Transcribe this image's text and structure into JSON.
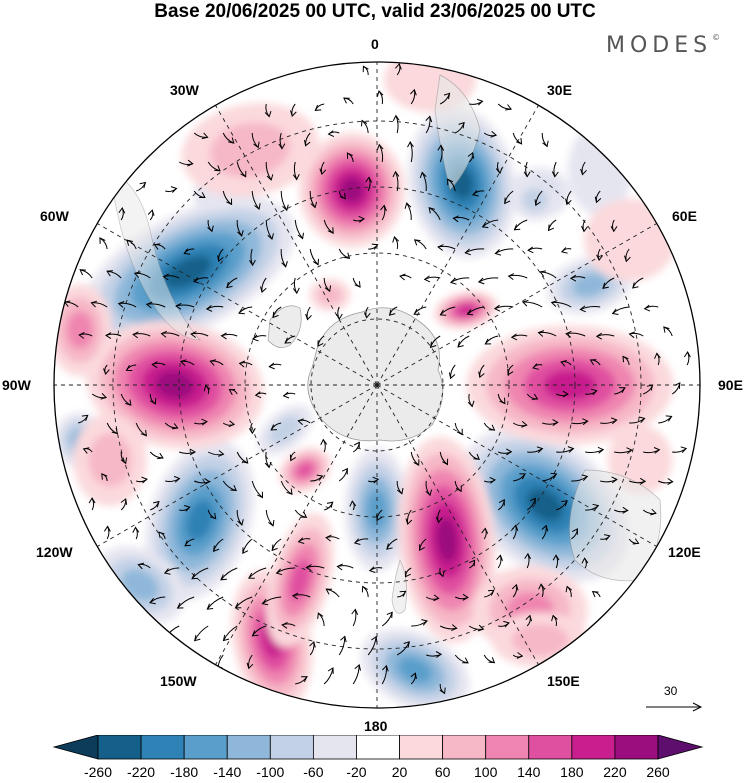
{
  "title": "Base 20/06/2025 00 UTC, valid 23/06/2025 00 UTC",
  "brand": "MODES",
  "brand_mark": "©",
  "longitude_labels": {
    "lon_0": "0",
    "lon_30e": "30E",
    "lon_60e": "60E",
    "lon_90e": "90E",
    "lon_120e": "120E",
    "lon_150e": "150E",
    "lon_180": "180",
    "lon_150w": "150W",
    "lon_120w": "120W",
    "lon_90w": "90W",
    "lon_60w": "60W",
    "lon_30w": "30W"
  },
  "vector_scale_label": "30",
  "colorbar": {
    "ticks": [
      "-260",
      "-220",
      "-180",
      "-140",
      "-100",
      "-60",
      "-20",
      "20",
      "60",
      "100",
      "140",
      "180",
      "220",
      "260"
    ],
    "colors": [
      "#0d3b5a",
      "#15608a",
      "#2f82b6",
      "#5a9fcb",
      "#8eb7d9",
      "#c3d1e6",
      "#e5e5f0",
      "#ffffff",
      "#fbd9dc",
      "#f6b7c6",
      "#ef85b0",
      "#e050a0",
      "#c81e8e",
      "#9b0e7e",
      "#5e0e6c"
    ]
  },
  "map_colors": {
    "land": "#e8e8e8",
    "coast": "#8a8a8a",
    "grid": "#222222",
    "arrow": "#000000",
    "outline": "#000000"
  }
}
